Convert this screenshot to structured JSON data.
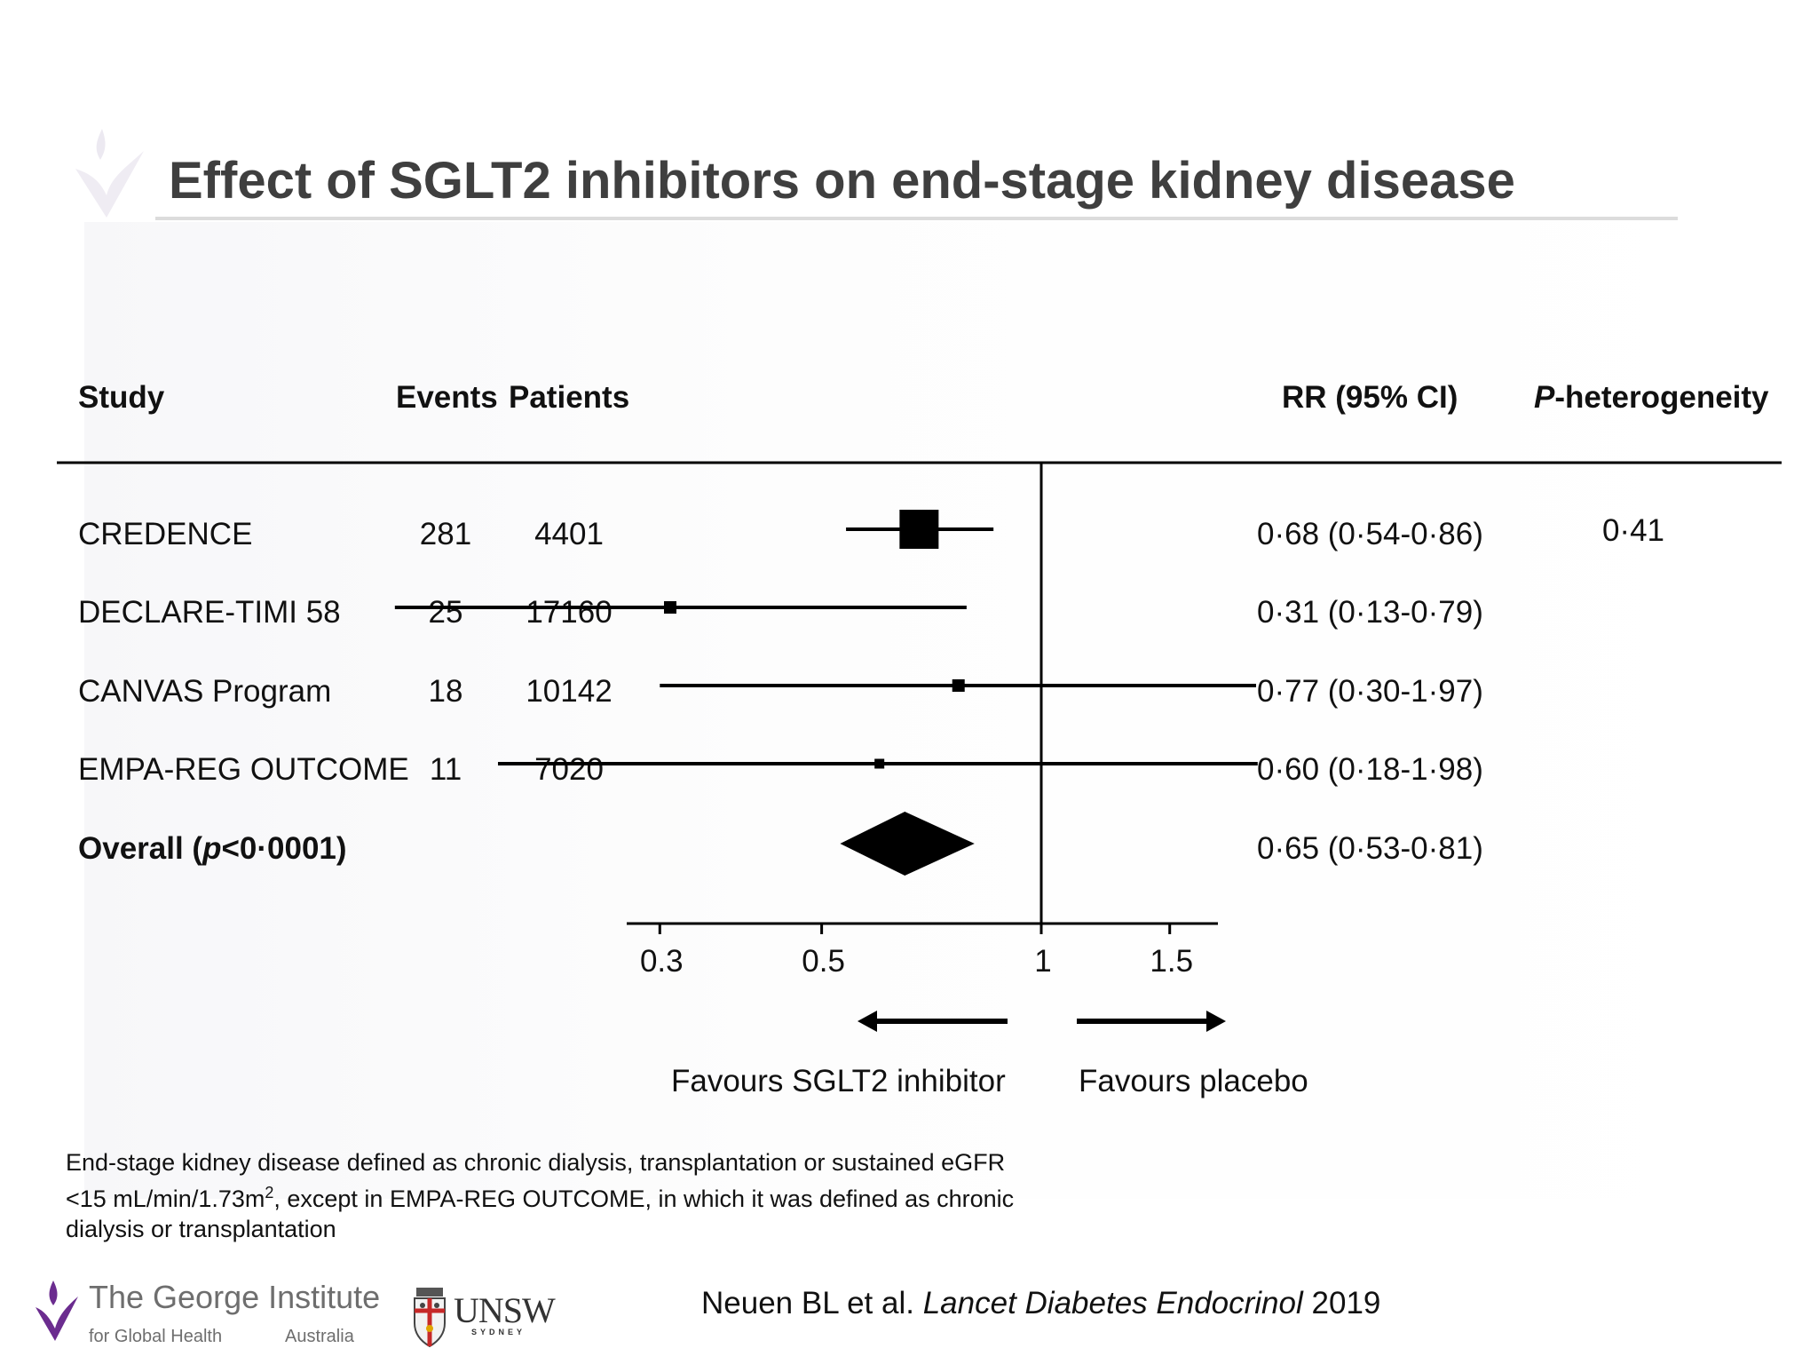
{
  "slide": {
    "title": "Effect of SGLT2 inhibitors on end-stage kidney disease",
    "headers": {
      "study": "Study",
      "events": "Events",
      "patients": "Patients",
      "rr": "RR (95% CI)",
      "p_italic": "P",
      "p_rest": "-heterogeneity"
    },
    "rows": [
      {
        "study": "CREDENCE",
        "events": "281",
        "patients": "4401",
        "rr": "0·68 (0·54-0·86)",
        "p": "0·41"
      },
      {
        "study": "DECLARE-TIMI 58",
        "events": "25",
        "patients": "17160",
        "rr": "0·31 (0·13-0·79)",
        "p": ""
      },
      {
        "study": "CANVAS Program",
        "events": "18",
        "patients": "10142",
        "rr": "0·77 (0·30-1·97)",
        "p": ""
      },
      {
        "study": "EMPA-REG OUTCOME",
        "events": "11",
        "patients": "7020",
        "rr": "0·60 (0·18-1·98)",
        "p": ""
      }
    ],
    "overall": {
      "label_pre": "Overall (",
      "label_p": "p",
      "label_post": "<0·0001)",
      "rr": "0·65 (0·53-0·81)"
    },
    "favours_left": "Favours SGLT2 inhibitor",
    "favours_right": "Favours placebo",
    "footnote_line1": "End-stage kidney disease defined as chronic dialysis, transplantation or sustained eGFR",
    "footnote_line2_pre": "<15 mL/min/1.73m",
    "footnote_sup": "2",
    "footnote_line2_post": ", except in EMPA-REG OUTCOME, in which it was defined as chronic",
    "footnote_line3": "dialysis or transplantation",
    "citation_authors": "Neuen BL et al.",
    "citation_journal": "Lancet Diabetes Endocrinol",
    "citation_year": "2019",
    "logos": {
      "george_name": "The George Institute",
      "george_sub_left": "for Global Health",
      "george_sub_right": "Australia",
      "unsw": "UNSW",
      "unsw_sub": "SYDNEY"
    },
    "colors": {
      "title": "#3f3f3f",
      "marks": "#000000",
      "logo_purple": "#6b2c8f"
    }
  },
  "chart_data": {
    "type": "forest",
    "x_scale": "log",
    "x_ticks": [
      "0.3",
      "0.5",
      "1",
      "1.5"
    ],
    "tick_values": [
      0.3,
      0.5,
      1,
      1.5
    ],
    "reference_line": 1,
    "studies": [
      {
        "name": "CREDENCE",
        "rr": 0.68,
        "lo": 0.54,
        "hi": 0.86
      },
      {
        "name": "DECLARE-TIMI 58",
        "rr": 0.31,
        "lo": 0.13,
        "hi": 0.79
      },
      {
        "name": "CANVAS Program",
        "rr": 0.77,
        "lo": 0.3,
        "hi": 1.97
      },
      {
        "name": "EMPA-REG OUTCOME",
        "rr": 0.6,
        "lo": 0.18,
        "hi": 1.98
      }
    ],
    "overall": {
      "rr": 0.65,
      "lo": 0.53,
      "hi": 0.81
    }
  }
}
